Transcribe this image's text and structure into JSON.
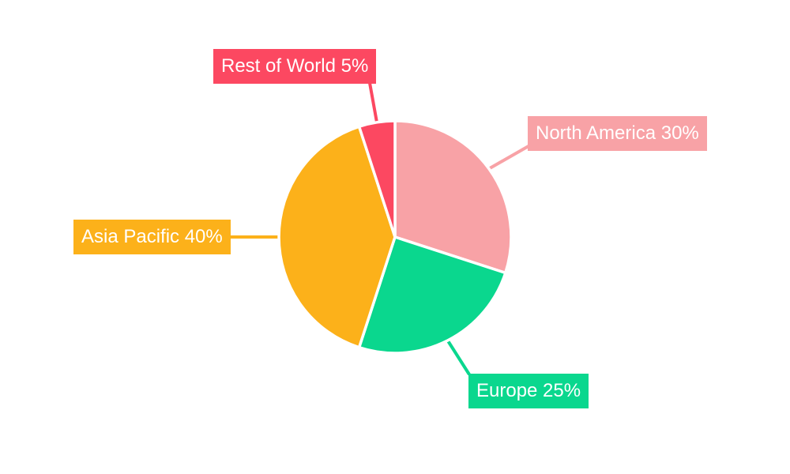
{
  "page": {
    "background": "#FFFFFF"
  },
  "chart_data": {
    "type": "pie",
    "title": "",
    "categories": [
      "North America",
      "Europe",
      "Asia Pacific",
      "Rest of World"
    ],
    "values": [
      30,
      25,
      40,
      5
    ],
    "unit": "%",
    "slices": [
      {
        "label": "North America",
        "value": 30,
        "callout_text": "North America 30%",
        "color": "#F8A2A6"
      },
      {
        "label": "Europe",
        "value": 25,
        "callout_text": "Europe 25%",
        "color": "#0AD78E"
      },
      {
        "label": "Asia Pacific",
        "value": 40,
        "callout_text": "Asia Pacific 40%",
        "color": "#FCB11A"
      },
      {
        "label": "Rest of World",
        "value": 5,
        "callout_text": "Rest of World 5%",
        "color": "#FC4861"
      }
    ],
    "start_angle_deg": 0,
    "direction": "clockwise",
    "slice_separator_color": "#FFFFFF",
    "callout_text_color": "#FFFFFF",
    "legend_position": "none",
    "label_style": "callout-boxes-with-leader-lines"
  }
}
